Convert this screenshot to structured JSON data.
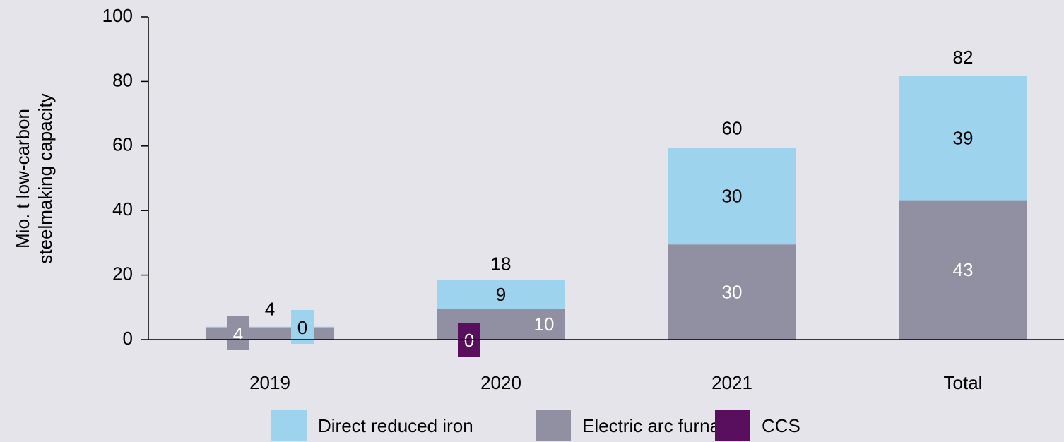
{
  "chart_data": {
    "type": "stacked-bar",
    "y_label": [
      "Mio. t low-carbon",
      "steelmaking capacity"
    ],
    "categories": [
      "2019",
      "2020",
      "2021",
      "Total"
    ],
    "series": [
      {
        "name": "Direct reduced iron",
        "color": "#9dd3ec",
        "values": [
          0.2,
          8.8,
          30,
          38.6
        ],
        "value_labels": [
          "0",
          "9",
          "30",
          "39"
        ]
      },
      {
        "name": "Electric arc furnaces",
        "color": "#9190a3",
        "values": [
          3.8,
          9.6,
          29.5,
          43.2
        ],
        "value_labels": [
          "4",
          "10",
          "30",
          "43"
        ]
      },
      {
        "name": "CCS",
        "color": "#5a0f5e",
        "values": [
          null,
          0,
          null,
          null
        ],
        "value_labels": [
          null,
          "0",
          null,
          null
        ]
      }
    ],
    "totals": [
      4,
      18,
      60,
      82
    ],
    "ylim": [
      0,
      100
    ],
    "yticks": [
      0,
      20,
      40,
      60,
      80,
      100
    ],
    "grid": false,
    "legend": "bottom"
  }
}
